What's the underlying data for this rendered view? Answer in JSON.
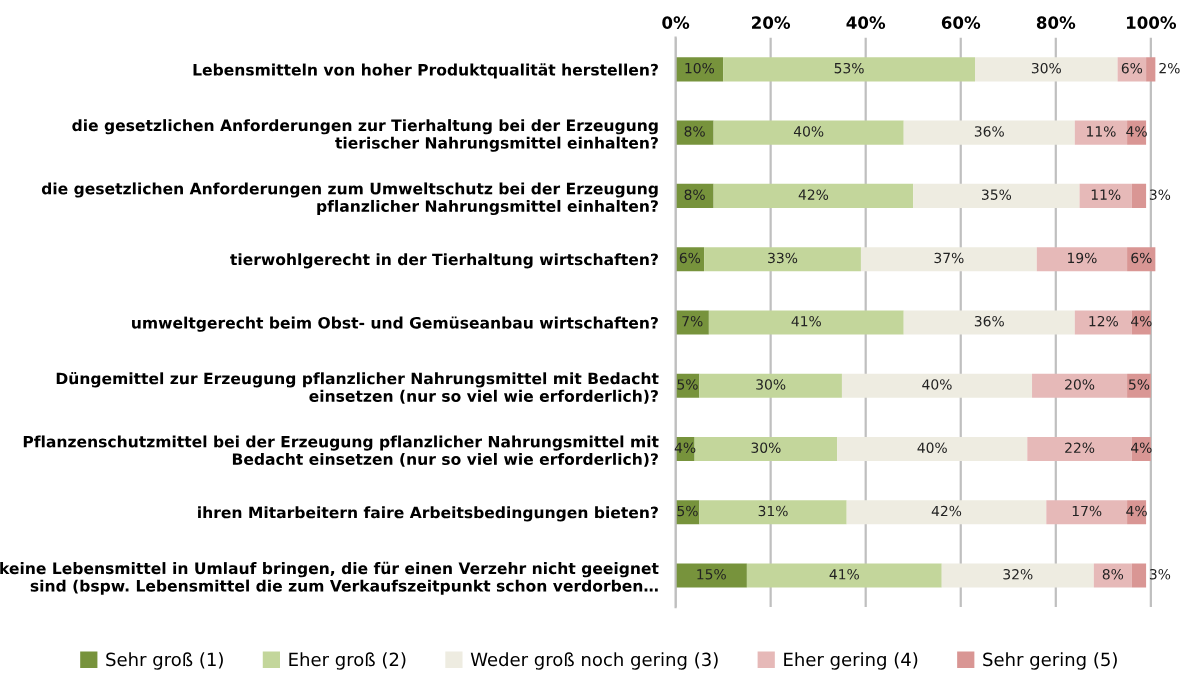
{
  "chart_data": {
    "type": "bar",
    "orientation": "horizontal",
    "stacked": true,
    "categories": [
      "Lebensmitteln von hoher Produktqualität herstellen?",
      "die gesetzlichen Anforderungen zur Tierhaltung bei der Erzeugung\ntierischer Nahrungsmittel einhalten?",
      "die gesetzlichen Anforderungen zum Umweltschutz bei der Erzeugung\npflanzlicher Nahrungsmittel einhalten?",
      "tierwohlgerecht in der Tierhaltung wirtschaften?",
      "umweltgerecht beim Obst- und Gemüseanbau wirtschaften?",
      "Düngemittel zur Erzeugung pflanzlicher Nahrungsmittel mit Bedacht\neinsetzen (nur so viel wie erforderlich)?",
      "Pflanzenschutzmittel bei der Erzeugung pflanzlicher Nahrungsmittel mit\nBedacht einsetzen (nur so viel wie erforderlich)?",
      "ihren Mitarbeitern faire Arbeitsbedingungen bieten?",
      "keine Lebensmittel in Umlauf bringen, die für einen Verzehr nicht geeignet\nsind (bspw. Lebensmittel die zum Verkaufszeitpunkt schon verdorben…"
    ],
    "series": [
      {
        "name": "Sehr groß (1)",
        "color": "#77933c",
        "values": [
          10,
          8,
          8,
          6,
          7,
          5,
          4,
          5,
          15
        ],
        "value_labels": [
          "10%",
          "8%",
          "8%",
          "6%",
          "7%",
          "5%",
          "4%",
          "5%",
          "15%"
        ]
      },
      {
        "name": "Eher groß (2)",
        "color": "#c3d69b",
        "values": [
          53,
          40,
          42,
          33,
          41,
          30,
          30,
          31,
          41
        ],
        "value_labels": [
          "53%",
          "40%",
          "42%",
          "33%",
          "41%",
          "30%",
          "30%",
          "31%",
          "41%"
        ]
      },
      {
        "name": "Weder groß noch gering (3)",
        "color": "#eeece1",
        "values": [
          30,
          36,
          35,
          37,
          36,
          40,
          40,
          42,
          32
        ],
        "value_labels": [
          "30%",
          "36%",
          "35%",
          "37%",
          "36%",
          "40%",
          "40%",
          "42%",
          "32%"
        ]
      },
      {
        "name": "Eher gering (4)",
        "color": "#e6b9b8",
        "values": [
          6,
          11,
          11,
          19,
          12,
          20,
          22,
          17,
          8
        ],
        "value_labels": [
          "6%",
          "11%",
          "11%",
          "19%",
          "12%",
          "20%",
          "22%",
          "17%",
          "8%"
        ]
      },
      {
        "name": "Sehr gering (5)",
        "color": "#d99694",
        "values": [
          2,
          4,
          3,
          6,
          4,
          5,
          4,
          4,
          3
        ],
        "value_labels": [
          "2%",
          "4%",
          "3%",
          "6%",
          "4%",
          "5%",
          "4%",
          "4%",
          "3%"
        ]
      }
    ],
    "xlim": [
      0,
      101
    ],
    "xticks": [
      {
        "value": 0,
        "label": "0%"
      },
      {
        "value": 20,
        "label": "20%"
      },
      {
        "value": 40,
        "label": "40%"
      },
      {
        "value": 60,
        "label": "60%"
      },
      {
        "value": 80,
        "label": "80%"
      },
      {
        "value": 100,
        "label": "100%"
      }
    ],
    "grid": "x",
    "legend": "bottom"
  }
}
